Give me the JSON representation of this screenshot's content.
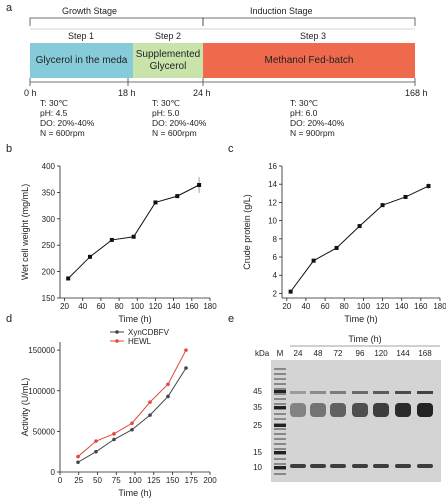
{
  "diagram": {
    "label": "a",
    "stages": [
      "Growth Stage",
      "Induction Stage"
    ],
    "steps": [
      {
        "step": "Step 1",
        "name": "Glycerol in the meda",
        "conditions": [
          "T: 30℃",
          "pH:  4.5",
          "DO:  20%-40%",
          "N = 600rpm"
        ]
      },
      {
        "step": "Step 2",
        "name": "Supplemented Glycerol",
        "conditions": [
          "T: 30℃",
          "pH:  5.0",
          "DO:  20%-40%",
          "N = 600rpm"
        ]
      },
      {
        "step": "Step 3",
        "name": "Methanol Fed-batch",
        "conditions": [
          "T: 30℃",
          "pH:  6.0",
          "DO:  20%-40%",
          "N = 900rpm"
        ]
      }
    ],
    "times": [
      "0 h",
      "18 h",
      "24 h",
      "168 h"
    ]
  },
  "chart_data": [
    {
      "type": "line",
      "panel": "b",
      "x_label": "Time (h)",
      "y_label": "Wet cell weight (mg/mL)",
      "x": [
        24,
        48,
        72,
        96,
        120,
        144,
        168
      ],
      "values": [
        187,
        228,
        260,
        266,
        331,
        343,
        364
      ],
      "errors": [
        2,
        3,
        3,
        3,
        3,
        3,
        15
      ],
      "color": "#111111",
      "xlim": [
        15,
        180
      ],
      "xticks": [
        20,
        40,
        60,
        80,
        100,
        120,
        140,
        160,
        180
      ],
      "ylim": [
        150,
        400
      ],
      "yticks": [
        150,
        200,
        250,
        300,
        350,
        400
      ]
    },
    {
      "type": "line",
      "panel": "c",
      "x_label": "Time (h)",
      "y_label": "Crude protein (g/L)",
      "x": [
        24,
        48,
        72,
        96,
        120,
        144,
        168
      ],
      "values": [
        2.2,
        5.6,
        7.0,
        9.4,
        11.7,
        12.6,
        13.8
      ],
      "errors": [
        0.1,
        0.1,
        0.1,
        0.1,
        0.1,
        0.1,
        0.3
      ],
      "color": "#111111",
      "xlim": [
        15,
        180
      ],
      "xticks": [
        20,
        40,
        60,
        80,
        100,
        120,
        140,
        160,
        180
      ],
      "ylim": [
        1.5,
        16
      ],
      "yticks": [
        2,
        4,
        6,
        8,
        10,
        12,
        14,
        16
      ]
    },
    {
      "type": "line",
      "panel": "d",
      "x_label": "Time (h)",
      "y_label": "Activity (U/mL)",
      "x": [
        24,
        48,
        72,
        96,
        120,
        144,
        168
      ],
      "series": [
        {
          "name": "XynCDBFV",
          "color": "#444444",
          "values": [
            12000,
            25000,
            40000,
            52000,
            70000,
            93000,
            128000
          ]
        },
        {
          "name": "HEWL",
          "color": "#e0483a",
          "values": [
            19000,
            38000,
            47000,
            60000,
            86000,
            108000,
            150000
          ]
        }
      ],
      "legend": "upper-left",
      "xlim": [
        0,
        200
      ],
      "xticks": [
        0,
        25,
        50,
        75,
        100,
        125,
        150,
        175,
        200
      ],
      "ylim": [
        0,
        160000
      ],
      "yticks": [
        0,
        50000,
        100000,
        150000
      ]
    }
  ],
  "gel": {
    "panel": "e",
    "title": "Time (h)",
    "unit": "kDa",
    "lanes": [
      "M",
      "24",
      "48",
      "72",
      "96",
      "120",
      "144",
      "168"
    ],
    "markers": [
      "45",
      "35",
      "25",
      "15",
      "10"
    ]
  }
}
